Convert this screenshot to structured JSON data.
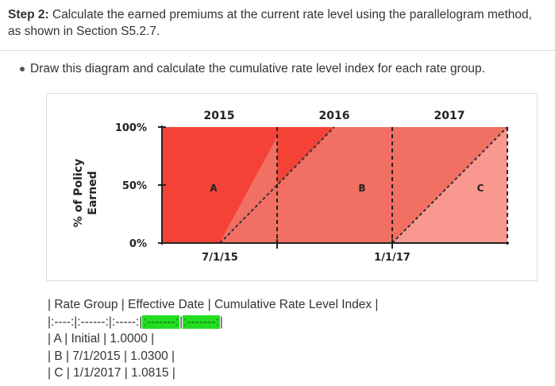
{
  "step": {
    "label": "Step 2:",
    "text": " Calculate the earned premiums at the current rate level using the parallelogram method, as shown in Section S5.2.7."
  },
  "bullet": {
    "text": "Draw this diagram and calculate the cumulative rate level index for each rate group."
  },
  "diagram": {
    "year_labels": [
      "2015",
      "2016",
      "2017"
    ],
    "y_ticks": [
      "100%",
      "50%",
      "0%"
    ],
    "y_axis_title_line1": "% of Policy",
    "y_axis_title_line2": "Earned",
    "x_labels": [
      "7/1/15",
      "1/1/17"
    ],
    "region_labels": [
      "A",
      "B",
      "C"
    ],
    "colors": {
      "region_a": "#f44336",
      "region_b": "#f26f63",
      "region_c": "#f8988e",
      "axis": "#222222"
    }
  },
  "table_text": {
    "header": "| Rate Group | Effective Date | Cumulative Rate Level Index |",
    "sep_start": "|:----:|:------:|:-----:|",
    "sep_hl1": ":-------:",
    "sep_mid": "|",
    "sep_hl2": ":-------:",
    "sep_end": "|",
    "row_a": "| A | Initial | 1.0000 |",
    "row_b": "| B | 7/1/2015 | 1.0300 |",
    "row_c": "| C | 1/1/2017 | 1.0815 |"
  }
}
